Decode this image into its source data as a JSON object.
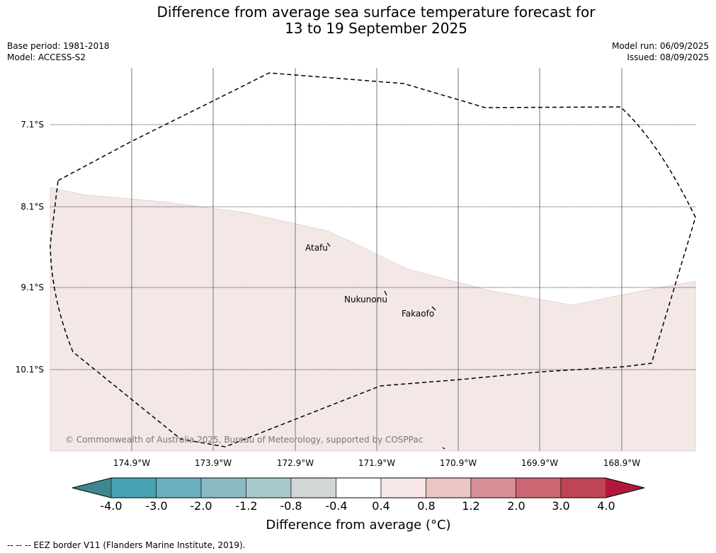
{
  "title": {
    "line1": "Difference from average sea surface temperature forecast for",
    "line2": "13 to 19 September 2025"
  },
  "meta": {
    "base_period": "Base period: 1981-2018",
    "model": "Model: ACCESS-S2",
    "model_run": "Model run: 06/09/2025",
    "issued": "Issued: 08/09/2025"
  },
  "map": {
    "latitudes": [
      "7.1°S",
      "8.1°S",
      "9.1°S",
      "10.1°S"
    ],
    "longitudes": [
      "174.9°W",
      "173.9°W",
      "172.9°W",
      "171.9°W",
      "170.9°W",
      "169.9°W",
      "168.9°W"
    ],
    "places": [
      "Atafu",
      "Nukunonu",
      "Fakaofo"
    ],
    "copyright": "© Commonwealth of Australia 2025, Bureau of Meteorology, supported by COSPPac",
    "colors": {
      "anomaly_fill": "#f4e8e7",
      "eez_border": "#000000",
      "meridian": "#666666"
    }
  },
  "colorbar": {
    "ticks": [
      "-4.0",
      "-3.0",
      "-2.0",
      "-1.2",
      "-0.8",
      "-0.4",
      "0.4",
      "0.8",
      "1.2",
      "2.0",
      "3.0",
      "4.0"
    ],
    "colors": [
      "#3f8690",
      "#45a3b2",
      "#6bb0be",
      "#8cbac3",
      "#a9c8cc",
      "#d0d7d6",
      "#ffffff",
      "#f7e8e7",
      "#e9c6c2",
      "#d89096",
      "#cc6673",
      "#be4456",
      "#b0193a"
    ],
    "label": "Difference from average (°C)"
  },
  "footer": "--  --  -- EEZ border V11 (Flanders Marine Institute, 2019)."
}
